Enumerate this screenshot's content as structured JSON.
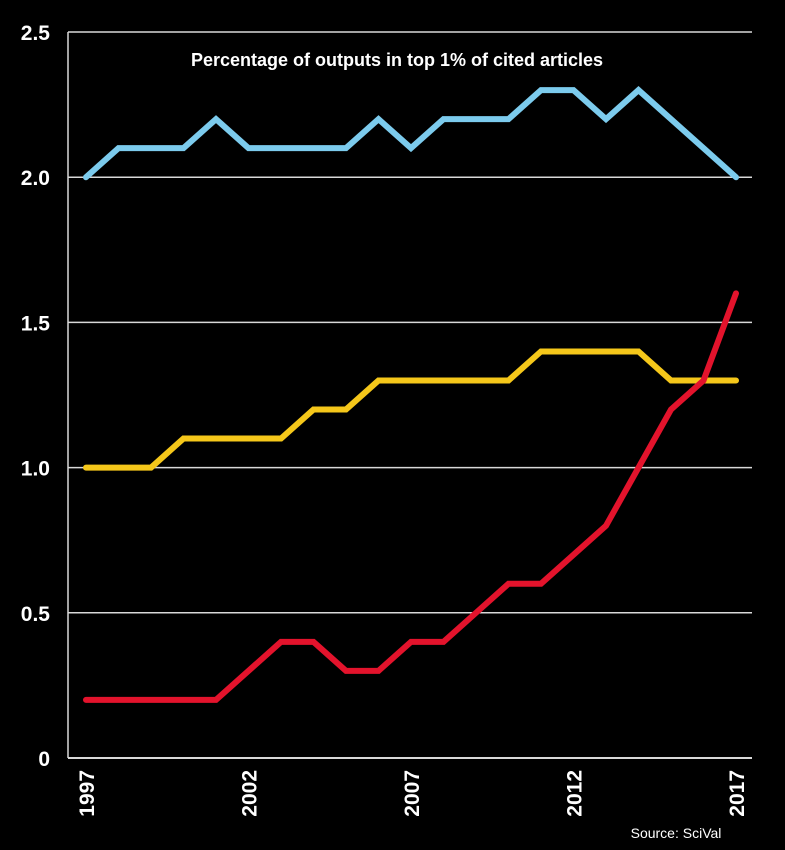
{
  "chart_data": {
    "type": "line",
    "title": "Percentage of outputs in top 1% of cited articles",
    "xlabel": "",
    "ylabel": "",
    "source": "Source: SciVal",
    "x": [
      1997,
      1998,
      1999,
      2000,
      2001,
      2002,
      2003,
      2004,
      2005,
      2006,
      2007,
      2008,
      2009,
      2010,
      2011,
      2012,
      2013,
      2014,
      2015,
      2016,
      2017
    ],
    "xticks": [
      "1997",
      "2002",
      "2007",
      "2012",
      "2017"
    ],
    "yticks": [
      "0",
      "0.5",
      "1.0",
      "1.5",
      "2.0",
      "2.5"
    ],
    "ylim": [
      0,
      2.5
    ],
    "xlim": [
      1997,
      2017
    ],
    "grid": "horizontal",
    "legend": "none",
    "series": [
      {
        "name": "Series 1 (blue)",
        "color": "#7ccbed",
        "values": [
          2.0,
          2.1,
          2.1,
          2.1,
          2.2,
          2.1,
          2.1,
          2.1,
          2.1,
          2.2,
          2.1,
          2.2,
          2.2,
          2.2,
          2.3,
          2.3,
          2.2,
          2.3,
          2.2,
          2.1,
          2.0
        ]
      },
      {
        "name": "Series 2 (yellow)",
        "color": "#f5c71a",
        "values": [
          1.0,
          1.0,
          1.0,
          1.1,
          1.1,
          1.1,
          1.1,
          1.2,
          1.2,
          1.3,
          1.3,
          1.3,
          1.3,
          1.3,
          1.4,
          1.4,
          1.4,
          1.4,
          1.3,
          1.3,
          1.3
        ]
      },
      {
        "name": "Series 3 (red)",
        "color": "#e3132c",
        "values": [
          0.2,
          0.2,
          0.2,
          0.2,
          0.2,
          0.3,
          0.4,
          0.4,
          0.3,
          0.3,
          0.4,
          0.4,
          0.5,
          0.6,
          0.6,
          0.7,
          0.8,
          1.0,
          1.2,
          1.3,
          1.6
        ]
      }
    ]
  }
}
